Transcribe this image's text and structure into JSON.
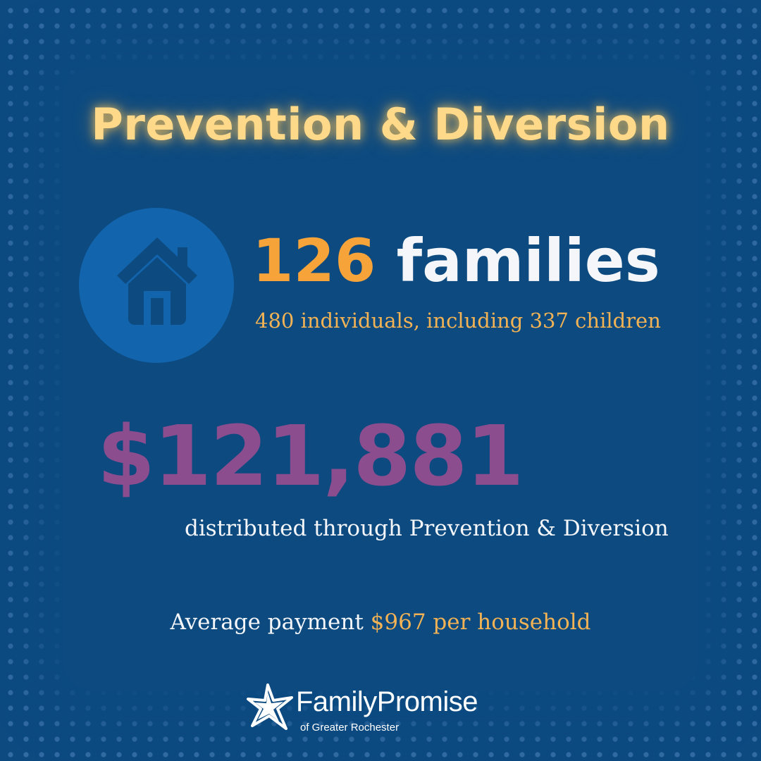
{
  "title": "Prevention & Diversion",
  "families": {
    "count": "126",
    "label": "families"
  },
  "individuals_line": "480 individuals, including 337 children",
  "amount": "$121,881",
  "distributed_line": "distributed through Prevention & Diversion",
  "average": {
    "lead": "Average payment",
    "highlight": "$967 per household"
  },
  "logo": {
    "brand": "FamilyPromise",
    "sub": "of Greater Rochester"
  },
  "icons": {
    "home": "house-icon",
    "logo": "star-icon"
  },
  "colors": {
    "background": "#0c4a80",
    "title": "#ffd98a",
    "orange": "#f6a33a",
    "purple": "#8c4d8f",
    "gold": "#f3b354",
    "circle": "#1264ad",
    "icon": "#0c4a80"
  }
}
